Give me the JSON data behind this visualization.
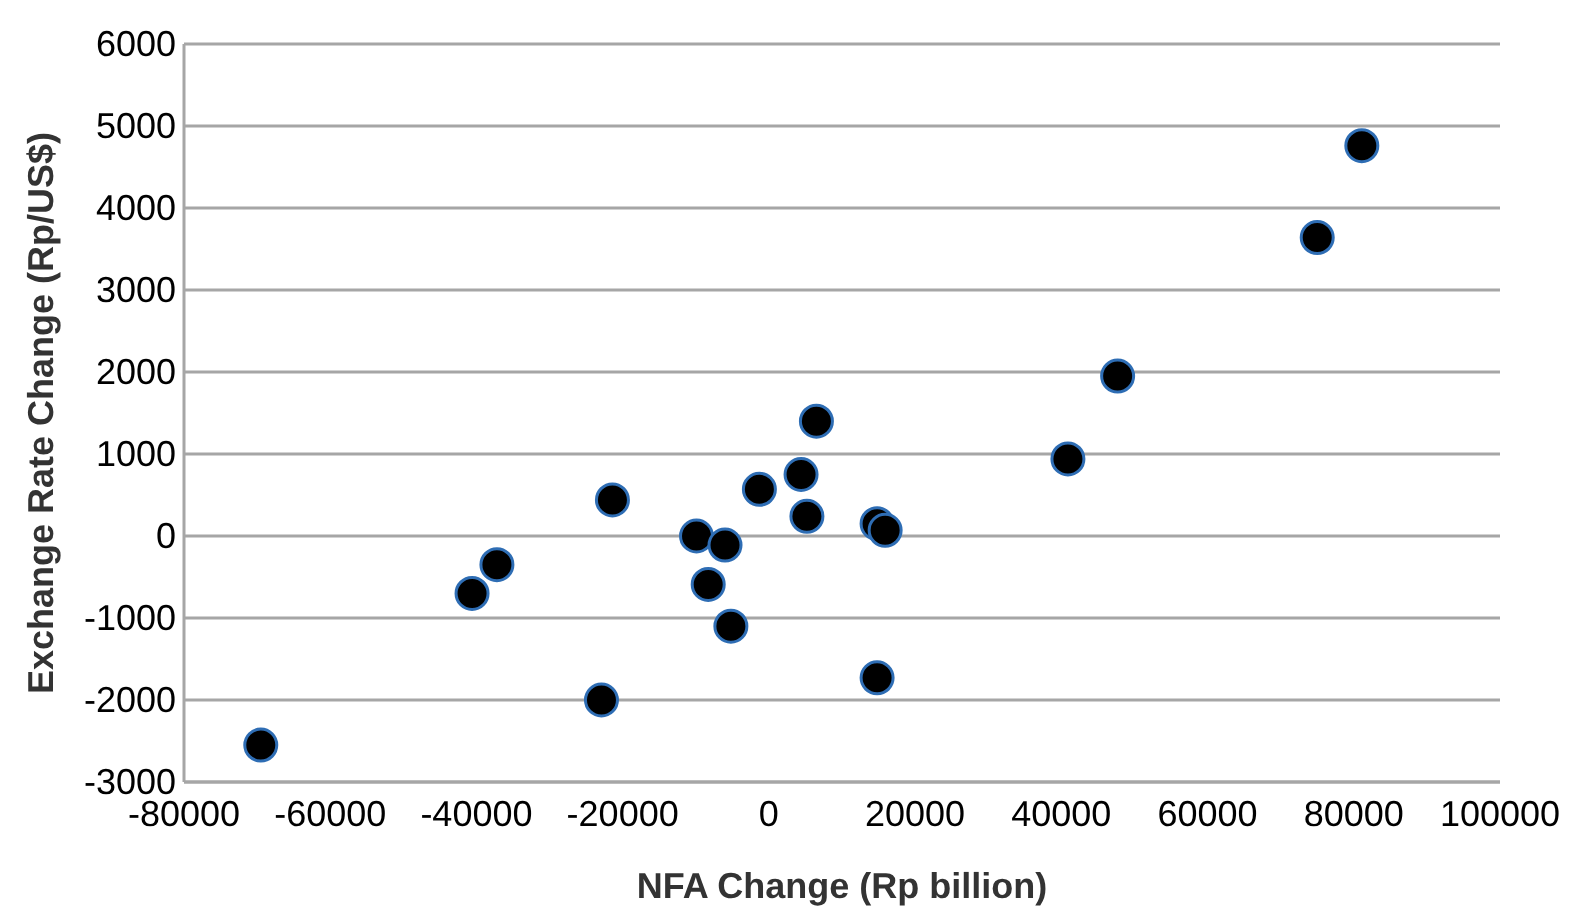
{
  "chart_data": {
    "type": "scatter",
    "xlabel": "NFA Change (Rp billion)",
    "ylabel": "Exchange Rate Change (Rp/US$)",
    "x": [
      -69500,
      -40600,
      -37200,
      -22900,
      -21400,
      -9900,
      -8300,
      -6000,
      -5200,
      -1300,
      4400,
      5200,
      6500,
      14800,
      15900,
      14800,
      40900,
      47700,
      75000,
      81100
    ],
    "values": [
      -2550,
      -700,
      -350,
      -2000,
      440,
      0,
      -590,
      -110,
      -1100,
      570,
      750,
      240,
      1400,
      150,
      70,
      -1730,
      940,
      1950,
      3640,
      4760
    ],
    "color": "#000000",
    "marker": "circle",
    "xlim": [
      -80000,
      100000
    ],
    "xticks": [
      -80000,
      -60000,
      -40000,
      -20000,
      0,
      20000,
      40000,
      60000,
      80000,
      100000
    ],
    "ylim": [
      -3000,
      6000
    ],
    "yticks": [
      -3000,
      -2000,
      -1000,
      0,
      1000,
      2000,
      3000,
      4000,
      5000,
      6000
    ],
    "grid": "y",
    "legend": false
  }
}
